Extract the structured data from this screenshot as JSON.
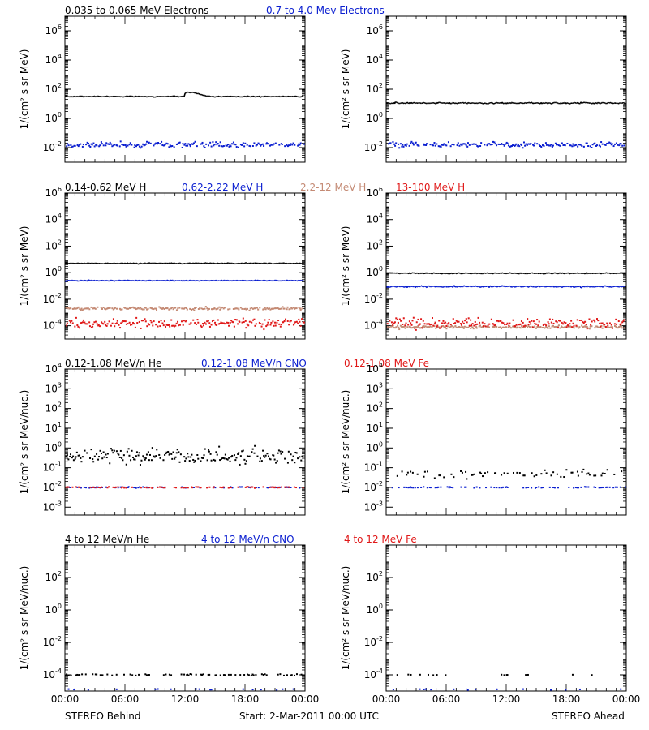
{
  "colors": {
    "black": "#000000",
    "blue": "#0a1ed0",
    "tan": "#c48a74",
    "red": "#e01818"
  },
  "footer": {
    "left": "STEREO Behind",
    "center": "Start:  2-Mar-2011 00:00 UTC",
    "right": "STEREO Ahead"
  },
  "chart_data": [
    {
      "type": "scatter",
      "row": 0,
      "title_segments": [
        {
          "text": "0.035 to 0.065 MeV Electrons",
          "color": "black"
        },
        {
          "text": "0.7 to 4.0 Mev Electrons",
          "color": "blue"
        }
      ],
      "ylabel": "1/(cm² s sr MeV)",
      "yscale": "log",
      "ylim_exp": [
        -3,
        7
      ],
      "ytick_exp": [
        -2,
        0,
        2,
        4,
        6
      ],
      "xlim_hours": [
        0,
        24
      ],
      "xtick_labels": [
        "00:00",
        "06:00",
        "12:00",
        "18:00",
        "00:00"
      ],
      "panels": [
        {
          "spacecraft": "STEREO Behind",
          "series": [
            {
              "color": "black",
              "density": "continuous",
              "level_exp": 1.5,
              "scatter": 0.03,
              "bump": {
                "at_hour": 12.5,
                "height": 0.3
              }
            },
            {
              "color": "blue",
              "density": "dense",
              "level_exp": -1.8,
              "scatter": 0.12
            }
          ]
        },
        {
          "spacecraft": "STEREO Ahead",
          "series": [
            {
              "color": "black",
              "density": "continuous",
              "level_exp": 1.05,
              "scatter": 0.04
            },
            {
              "color": "blue",
              "density": "dense",
              "level_exp": -1.8,
              "scatter": 0.12
            }
          ]
        }
      ]
    },
    {
      "type": "scatter",
      "row": 1,
      "title_segments": [
        {
          "text": "0.14-0.62 MeV H",
          "color": "black"
        },
        {
          "text": "0.62-2.22 MeV H",
          "color": "blue"
        },
        {
          "text": "2.2-12 MeV H",
          "color": "tan"
        },
        {
          "text": "13-100 MeV H",
          "color": "red"
        }
      ],
      "ylabel": "1/(cm² s sr MeV)",
      "yscale": "log",
      "ylim_exp": [
        -5,
        6
      ],
      "ytick_exp": [
        -4,
        -2,
        0,
        2,
        4,
        6
      ],
      "xlim_hours": [
        0,
        24
      ],
      "xtick_labels": [
        "00:00",
        "06:00",
        "12:00",
        "18:00",
        "00:00"
      ],
      "panels": [
        {
          "spacecraft": "STEREO Behind",
          "series": [
            {
              "color": "black",
              "density": "continuous",
              "level_exp": 0.7,
              "scatter": 0.03
            },
            {
              "color": "blue",
              "density": "continuous",
              "level_exp": -0.6,
              "scatter": 0.03
            },
            {
              "color": "tan",
              "density": "dense",
              "level_exp": -2.7,
              "scatter": 0.08
            },
            {
              "color": "red",
              "density": "dense",
              "level_exp": -3.8,
              "scatter": 0.25
            }
          ]
        },
        {
          "spacecraft": "STEREO Ahead",
          "series": [
            {
              "color": "black",
              "density": "continuous",
              "level_exp": -0.05,
              "scatter": 0.04
            },
            {
              "color": "blue",
              "density": "continuous",
              "level_exp": -1.05,
              "scatter": 0.05
            },
            {
              "color": "tan",
              "density": "dense",
              "level_exp": -4.1,
              "scatter": 0.08
            },
            {
              "color": "red",
              "density": "dense",
              "level_exp": -3.8,
              "scatter": 0.25
            }
          ]
        }
      ]
    },
    {
      "type": "scatter",
      "row": 2,
      "title_segments": [
        {
          "text": "0.12-1.08 MeV/n He",
          "color": "black"
        },
        {
          "text": "0.12-1.08 MeV/n CNO",
          "color": "blue"
        },
        {
          "text": "0.12-1.08 MeV Fe",
          "color": "red"
        }
      ],
      "ylabel": "1/(cm² s sr MeV/nuc.)",
      "yscale": "log",
      "ylim_exp": [
        -3.4,
        4
      ],
      "ytick_exp": [
        -3,
        -2,
        -1,
        0,
        1,
        2,
        3,
        4
      ],
      "xlim_hours": [
        0,
        24
      ],
      "xtick_labels": [
        "00:00",
        "06:00",
        "12:00",
        "18:00",
        "00:00"
      ],
      "panels": [
        {
          "spacecraft": "STEREO Behind",
          "series": [
            {
              "color": "black",
              "density": "dense",
              "level_exp": -0.4,
              "scatter": 0.25
            },
            {
              "color": "blue",
              "density": "sparse",
              "level_exp": -2.0,
              "scatter": 0.02
            },
            {
              "color": "red",
              "density": "sparse",
              "level_exp": -2.0,
              "scatter": 0.02
            }
          ]
        },
        {
          "spacecraft": "STEREO Ahead",
          "series": [
            {
              "color": "black",
              "density": "sparse",
              "level_exp": -1.3,
              "scatter": 0.15
            },
            {
              "color": "blue",
              "density": "sparse",
              "level_exp": -2.0,
              "scatter": 0.02
            }
          ]
        }
      ]
    },
    {
      "type": "scatter",
      "row": 3,
      "title_segments": [
        {
          "text": "4 to 12 MeV/n He",
          "color": "black"
        },
        {
          "text": "4 to 12 MeV/n CNO",
          "color": "blue"
        },
        {
          "text": "4 to 12 MeV Fe",
          "color": "red"
        }
      ],
      "ylabel": "1/(cm² s sr MeV/nuc.)",
      "yscale": "log",
      "ylim_exp": [
        -5,
        4
      ],
      "ytick_exp": [
        -4,
        -2,
        0,
        2
      ],
      "xlim_hours": [
        0,
        24
      ],
      "xtick_labels": [
        "00:00",
        "06:00",
        "12:00",
        "18:00",
        "00:00"
      ],
      "panels": [
        {
          "spacecraft": "STEREO Behind",
          "series": [
            {
              "color": "black",
              "density": "sparse",
              "level_exp": -4.0,
              "scatter": 0.03
            },
            {
              "color": "blue",
              "density": "rare",
              "level_exp": -4.9,
              "scatter": 0.02
            }
          ]
        },
        {
          "spacecraft": "STEREO Ahead",
          "series": [
            {
              "color": "black",
              "density": "rare",
              "level_exp": -4.0,
              "scatter": 0.02
            },
            {
              "color": "blue",
              "density": "rare",
              "level_exp": -4.9,
              "scatter": 0.02
            }
          ]
        }
      ]
    }
  ]
}
